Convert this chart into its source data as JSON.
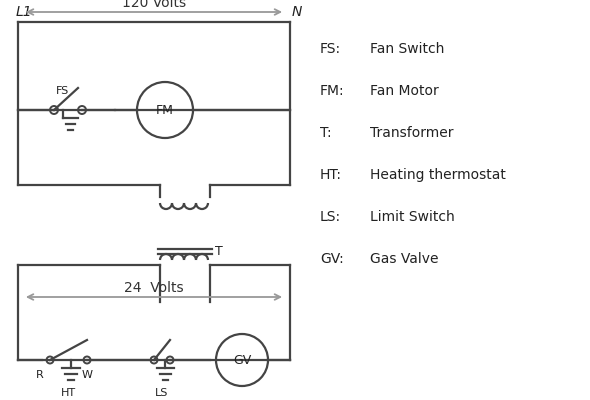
{
  "background_color": "#ffffff",
  "line_color": "#444444",
  "line_width": 1.6,
  "legend_items": [
    [
      "FS:",
      "Fan Switch"
    ],
    [
      "FM:",
      "Fan Motor"
    ],
    [
      "T:",
      "Transformer"
    ],
    [
      "HT:",
      "Heating thermostat"
    ],
    [
      "LS:",
      "Limit Switch"
    ],
    [
      "GV:",
      "Gas Valve"
    ]
  ],
  "label_L1": "L1",
  "label_N": "N",
  "label_120": "120 Volts",
  "label_24": "24  Volts",
  "label_T": "T",
  "label_FS": "FS",
  "label_FM": "FM",
  "label_GV": "GV",
  "label_R": "R",
  "label_W": "W",
  "label_HT": "HT",
  "label_LS": "LS"
}
